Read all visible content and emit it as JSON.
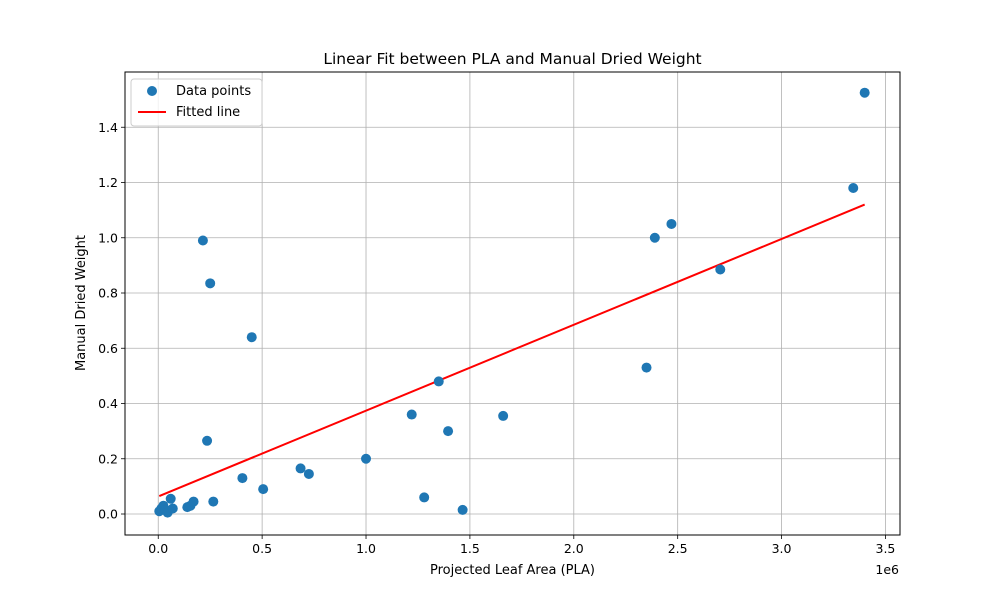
{
  "chart_data": {
    "type": "scatter",
    "title": "Linear Fit between PLA and Manual Dried Weight",
    "xlabel": "Projected Leaf Area (PLA)",
    "ylabel": "Manual Dried Weight",
    "x_offset_label": "1e6",
    "xlim": [
      -160000,
      3570000
    ],
    "ylim": [
      -0.076,
      1.6
    ],
    "xticks": [
      0,
      500000,
      1000000,
      1500000,
      2000000,
      2500000,
      3000000,
      3500000
    ],
    "xtick_labels": [
      "0.0",
      "0.5",
      "1.0",
      "1.5",
      "2.0",
      "2.5",
      "3.0",
      "3.5"
    ],
    "yticks": [
      0.0,
      0.2,
      0.4,
      0.6,
      0.8,
      1.0,
      1.2,
      1.4
    ],
    "ytick_labels": [
      "0.0",
      "0.2",
      "0.4",
      "0.6",
      "0.8",
      "1.0",
      "1.2",
      "1.4"
    ],
    "grid": true,
    "legend_position": "top-left",
    "series": [
      {
        "name": "Data points",
        "kind": "scatter",
        "color": "#1f77b4",
        "points": [
          [
            5000,
            0.01
          ],
          [
            15000,
            0.02
          ],
          [
            25000,
            0.03
          ],
          [
            35000,
            0.015
          ],
          [
            45000,
            0.005
          ],
          [
            60000,
            0.055
          ],
          [
            70000,
            0.02
          ],
          [
            140000,
            0.025
          ],
          [
            155000,
            0.03
          ],
          [
            170000,
            0.045
          ],
          [
            215000,
            0.99
          ],
          [
            235000,
            0.265
          ],
          [
            250000,
            0.835
          ],
          [
            265000,
            0.045
          ],
          [
            405000,
            0.13
          ],
          [
            450000,
            0.64
          ],
          [
            505000,
            0.09
          ],
          [
            685000,
            0.165
          ],
          [
            725000,
            0.145
          ],
          [
            1000000,
            0.2
          ],
          [
            1220000,
            0.36
          ],
          [
            1280000,
            0.06
          ],
          [
            1350000,
            0.48
          ],
          [
            1395000,
            0.3
          ],
          [
            1465000,
            0.015
          ],
          [
            1660000,
            0.355
          ],
          [
            2350000,
            0.53
          ],
          [
            2390000,
            1.0
          ],
          [
            2470000,
            1.05
          ],
          [
            2705000,
            0.885
          ],
          [
            3345000,
            1.18
          ],
          [
            3400000,
            1.525
          ]
        ]
      },
      {
        "name": "Fitted line",
        "kind": "line",
        "color": "#ff0000",
        "points": [
          [
            5000,
            0.065
          ],
          [
            3400000,
            1.12
          ]
        ]
      }
    ]
  }
}
